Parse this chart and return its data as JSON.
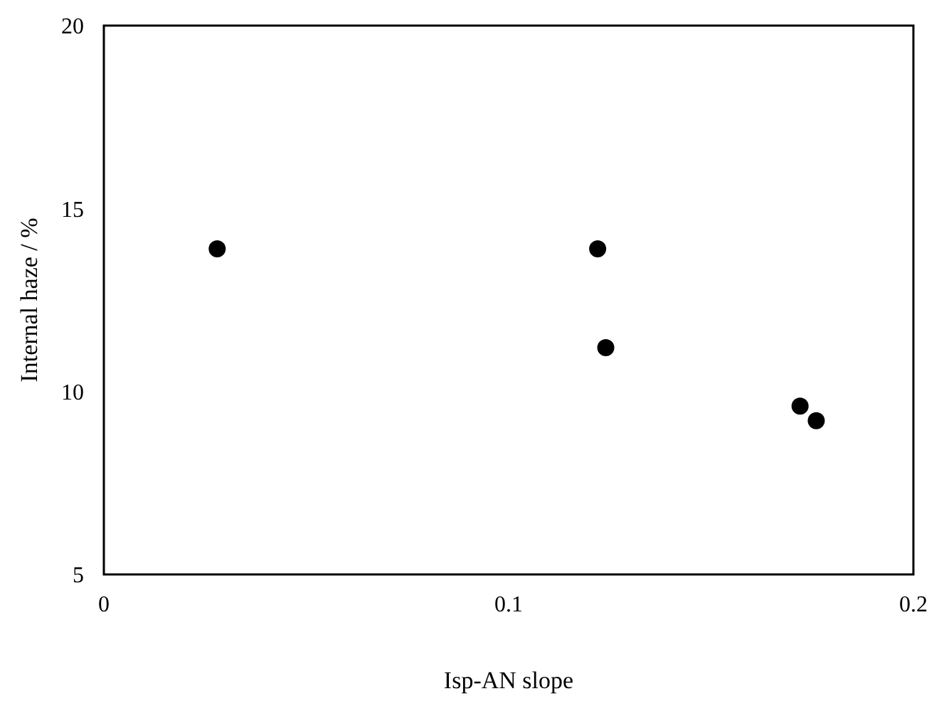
{
  "chart_data": {
    "type": "scatter",
    "xlabel": "Isp-AN slope",
    "ylabel": "Internal haze / %",
    "x": [
      0.028,
      0.122,
      0.124,
      0.172,
      0.176
    ],
    "values": [
      13.9,
      13.9,
      11.2,
      9.6,
      9.2
    ],
    "color": "#000000",
    "marker": "circle",
    "xlim": [
      0,
      0.2
    ],
    "xticks": [
      0,
      0.1,
      0.2
    ],
    "ylim": [
      5,
      20
    ],
    "yticks": [
      5,
      10,
      15,
      20
    ],
    "grid": false
  }
}
